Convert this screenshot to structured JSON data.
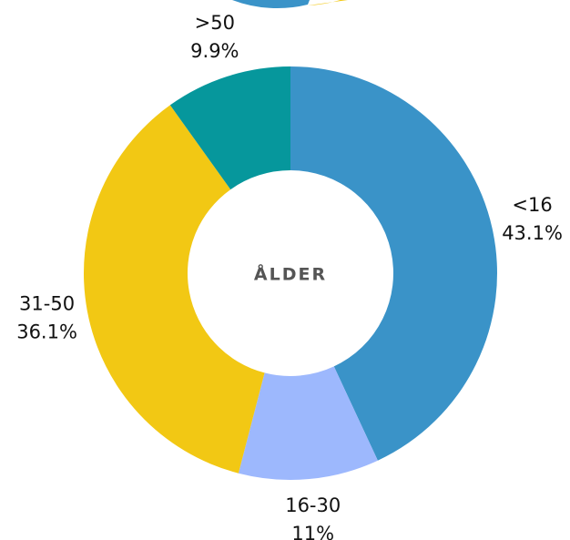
{
  "chart_data": {
    "type": "donut",
    "center_label": "ÅLDER",
    "categories": [
      "<16",
      "16-30",
      "31-50",
      ">50"
    ],
    "values": [
      43.1,
      11,
      36.1,
      9.9
    ],
    "value_labels": [
      "43.1%",
      "11%",
      "36.1%",
      "9.9%"
    ],
    "colors": [
      "#3a93c8",
      "#9db8fd",
      "#f2c814",
      "#06979c"
    ]
  }
}
